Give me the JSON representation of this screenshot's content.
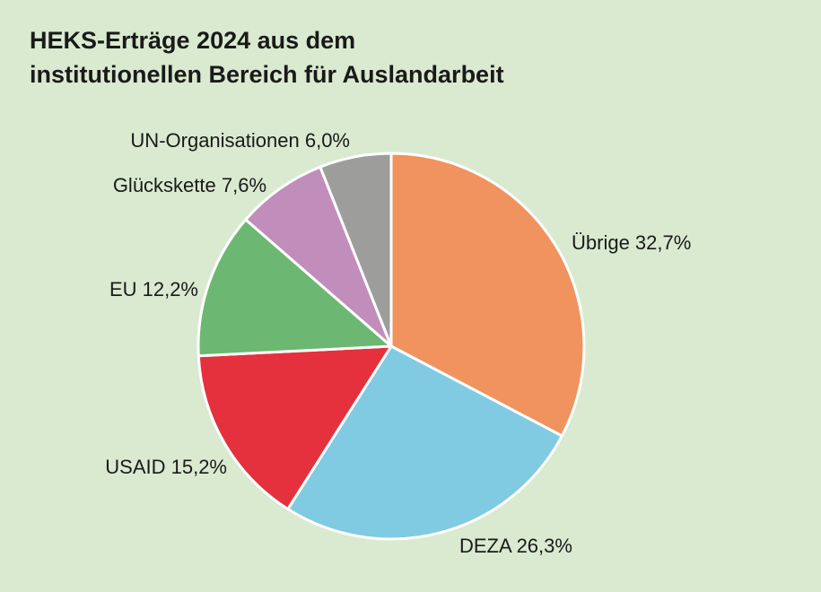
{
  "chart_data": {
    "type": "pie",
    "title": "HEKS-Erträge 2024 aus dem institutionellen Bereich für Auslandarbeit",
    "title_lines": [
      "HEKS-Erträge 2024 aus dem",
      "institutionellen Bereich für Auslandarbeit"
    ],
    "start_angle_deg": 0,
    "direction": "clockwise",
    "slices": [
      {
        "name": "Übrige",
        "value": 32.7,
        "label": "Übrige 32,7%",
        "color": "#f0935e"
      },
      {
        "name": "DEZA",
        "value": 26.3,
        "label": "DEZA 26,3%",
        "color": "#80cbe2"
      },
      {
        "name": "USAID",
        "value": 15.2,
        "label": "USAID 15,2%",
        "color": "#e5313d"
      },
      {
        "name": "EU",
        "value": 12.2,
        "label": "EU 12,2%",
        "color": "#6cb872"
      },
      {
        "name": "Glückskette",
        "value": 7.6,
        "label": "Glückskette 7,6%",
        "color": "#c18ebc"
      },
      {
        "name": "UN-Organisationen",
        "value": 6.0,
        "label": "UN-Organisationen 6,0%",
        "color": "#9d9d9b"
      }
    ],
    "legend": "none",
    "grid": false
  },
  "colors": {
    "background": "#d9ead0",
    "slice_border": "#ffffff",
    "text": "#1a1a1a"
  }
}
